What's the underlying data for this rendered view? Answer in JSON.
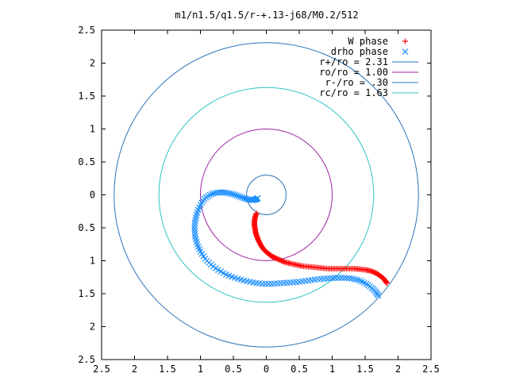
{
  "chart_data": {
    "type": "scatter",
    "title": "m1/n1.5/q1.5/r-+.13-j68/M0.2/512",
    "xlabel": "",
    "ylabel": "",
    "xlim": [
      -2.5,
      2.5
    ],
    "ylim": [
      -2.5,
      2.5
    ],
    "x_ticks": [
      -2.5,
      -2,
      -1.5,
      -1,
      -0.5,
      0,
      0.5,
      1,
      1.5,
      2,
      2.5
    ],
    "y_ticks": [
      -2.5,
      -2,
      -1.5,
      -1,
      -0.5,
      0,
      0.5,
      1,
      1.5,
      2,
      2.5
    ],
    "x_tick_labels": [
      "2.5",
      "2",
      "1.5",
      "1",
      "0.5",
      "0",
      "0.5",
      "1",
      "1.5",
      "2",
      "2.5"
    ],
    "y_tick_labels": [
      "2.5",
      "2",
      "1.5",
      "1",
      "0.5",
      "0",
      "0.5",
      "1",
      "1.5",
      "2",
      "2.5"
    ],
    "grid": false,
    "legend_position": "top-right",
    "circles": [
      {
        "name": "r+/ro = 2.31",
        "radius": 2.31,
        "color": "#2e72b8"
      },
      {
        "name": "ro/ro = 1.00",
        "radius": 1.0,
        "color": "#a020a0"
      },
      {
        "name": "r-/ro = .30",
        "radius": 0.3,
        "color": "#2e72b8"
      },
      {
        "name": "rc/ro = 1.63",
        "radius": 1.63,
        "color": "#2ec4c4"
      }
    ],
    "series": [
      {
        "name": "W phase",
        "marker": "plus",
        "color": "#ff0000",
        "points": [
          [
            -0.15,
            -0.28
          ],
          [
            -0.17,
            -0.34
          ],
          [
            -0.18,
            -0.4
          ],
          [
            -0.18,
            -0.46
          ],
          [
            -0.17,
            -0.52
          ],
          [
            -0.16,
            -0.58
          ],
          [
            -0.14,
            -0.64
          ],
          [
            -0.12,
            -0.69
          ],
          [
            -0.09,
            -0.75
          ],
          [
            -0.06,
            -0.8
          ],
          [
            -0.02,
            -0.85
          ],
          [
            0.03,
            -0.89
          ],
          [
            0.08,
            -0.93
          ],
          [
            0.14,
            -0.96
          ],
          [
            0.21,
            -0.99
          ],
          [
            0.28,
            -1.02
          ],
          [
            0.36,
            -1.04
          ],
          [
            0.45,
            -1.06
          ],
          [
            0.54,
            -1.08
          ],
          [
            0.64,
            -1.09
          ],
          [
            0.74,
            -1.1
          ],
          [
            0.84,
            -1.11
          ],
          [
            0.94,
            -1.12
          ],
          [
            1.04,
            -1.12
          ],
          [
            1.14,
            -1.12
          ],
          [
            1.24,
            -1.12
          ],
          [
            1.34,
            -1.12
          ],
          [
            1.43,
            -1.13
          ],
          [
            1.52,
            -1.14
          ],
          [
            1.6,
            -1.16
          ],
          [
            1.67,
            -1.19
          ],
          [
            1.73,
            -1.23
          ],
          [
            1.78,
            -1.27
          ],
          [
            1.81,
            -1.31
          ],
          [
            1.83,
            -1.34
          ]
        ]
      },
      {
        "name": "drho phase",
        "marker": "cross",
        "color": "#1e90ff",
        "points": [
          [
            1.7,
            -1.53
          ],
          [
            1.66,
            -1.47
          ],
          [
            1.6,
            -1.41
          ],
          [
            1.52,
            -1.35
          ],
          [
            1.42,
            -1.3
          ],
          [
            1.3,
            -1.27
          ],
          [
            1.18,
            -1.26
          ],
          [
            1.05,
            -1.26
          ],
          [
            0.92,
            -1.27
          ],
          [
            0.78,
            -1.28
          ],
          [
            0.64,
            -1.3
          ],
          [
            0.5,
            -1.32
          ],
          [
            0.36,
            -1.33
          ],
          [
            0.22,
            -1.34
          ],
          [
            0.08,
            -1.35
          ],
          [
            -0.06,
            -1.35
          ],
          [
            -0.2,
            -1.33
          ],
          [
            -0.34,
            -1.3
          ],
          [
            -0.48,
            -1.26
          ],
          [
            -0.61,
            -1.21
          ],
          [
            -0.73,
            -1.14
          ],
          [
            -0.84,
            -1.06
          ],
          [
            -0.93,
            -0.97
          ],
          [
            -1.0,
            -0.86
          ],
          [
            -1.05,
            -0.75
          ],
          [
            -1.08,
            -0.63
          ],
          [
            -1.09,
            -0.51
          ],
          [
            -1.08,
            -0.39
          ],
          [
            -1.05,
            -0.27
          ],
          [
            -1.0,
            -0.15
          ],
          [
            -0.94,
            -0.06
          ],
          [
            -0.86,
            0.0
          ],
          [
            -0.77,
            0.03
          ],
          [
            -0.68,
            0.04
          ],
          [
            -0.59,
            0.03
          ],
          [
            -0.5,
            0.01
          ],
          [
            -0.42,
            -0.02
          ],
          [
            -0.34,
            -0.05
          ],
          [
            -0.27,
            -0.07
          ],
          [
            -0.21,
            -0.08
          ],
          [
            -0.16,
            -0.07
          ],
          [
            -0.13,
            -0.05
          ]
        ]
      }
    ]
  }
}
